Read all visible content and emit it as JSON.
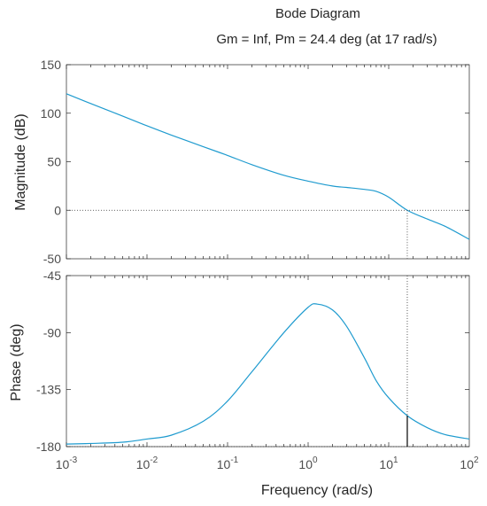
{
  "chart_data": {
    "type": "line",
    "title": "Bode Diagram",
    "subtitle": "Gm = Inf,  Pm = 24.4 deg (at 17 rad/s)",
    "xlabel": "Frequency  (rad/s)",
    "xscale": "log",
    "xlim": [
      0.001,
      100
    ],
    "grid": false,
    "line_color": "#1f9bcf",
    "margin_marker_color": "#000000",
    "xticks": [
      0.001,
      0.01,
      0.1,
      1,
      10,
      100
    ],
    "xtick_labels": [
      {
        "base": "10",
        "exp": "-3"
      },
      {
        "base": "10",
        "exp": "-2"
      },
      {
        "base": "10",
        "exp": "-1"
      },
      {
        "base": "10",
        "exp": "0"
      },
      {
        "base": "10",
        "exp": "1"
      },
      {
        "base": "10",
        "exp": "2"
      }
    ],
    "phase_margin_frequency": 17,
    "subplots": [
      {
        "name": "magnitude",
        "ylabel": "Magnitude (dB)",
        "ylim": [
          -50,
          150
        ],
        "yticks": [
          -50,
          0,
          50,
          100,
          150
        ],
        "ytick_labels": [
          "-50",
          "0",
          "50",
          "100",
          "150"
        ],
        "reference_line": 0,
        "series": [
          {
            "x": [
              0.001,
              0.002,
              0.005,
              0.01,
              0.02,
              0.05,
              0.1,
              0.2,
              0.5,
              1,
              2,
              3,
              5,
              7,
              10,
              17,
              30,
              50,
              100
            ],
            "y": [
              120,
              110,
              97,
              87,
              77.5,
              65.5,
              56.5,
              47,
              36,
              30,
              25,
              23.5,
              21.5,
              19.5,
              13.5,
              0,
              -9,
              -16.5,
              -30
            ]
          }
        ]
      },
      {
        "name": "phase",
        "ylabel": "Phase (deg)",
        "ylim": [
          -180,
          -45
        ],
        "yticks": [
          -180,
          -135,
          -90,
          -45
        ],
        "ytick_labels": [
          "-180",
          "-135",
          "-90",
          "-45"
        ],
        "reference_line": -180,
        "phase_at_margin": -155.6,
        "series": [
          {
            "x": [
              0.001,
              0.002,
              0.005,
              0.01,
              0.02,
              0.05,
              0.1,
              0.2,
              0.5,
              1,
              1.3,
              2,
              3,
              5,
              7,
              10,
              17,
              30,
              50,
              100
            ],
            "y": [
              -178,
              -177.5,
              -176.5,
              -174,
              -171,
              -160,
              -144,
              -121,
              -90,
              -70,
              -67.5,
              -72,
              -85,
              -110,
              -128,
              -141.5,
              -155.6,
              -165,
              -170.5,
              -174
            ]
          }
        ]
      }
    ]
  }
}
